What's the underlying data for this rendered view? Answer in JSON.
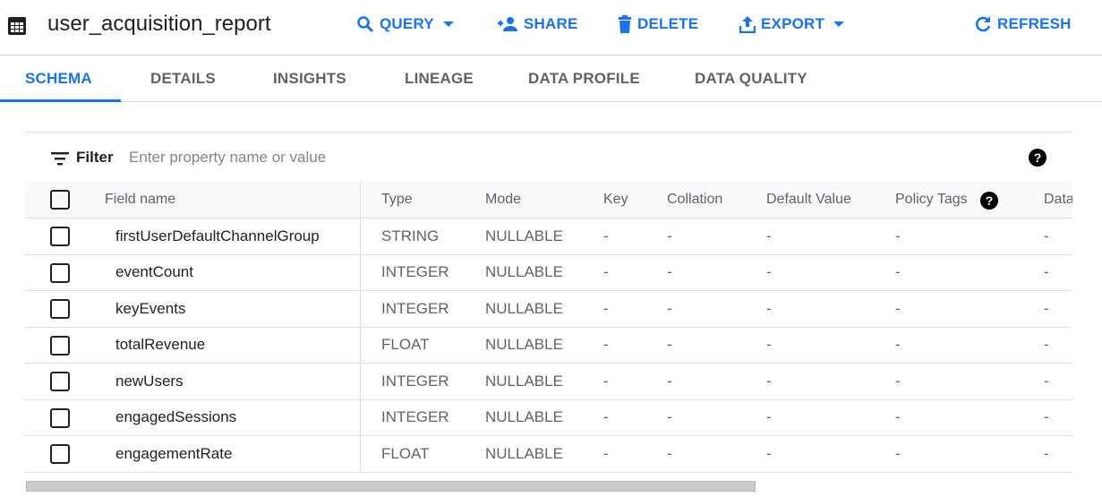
{
  "header": {
    "title": "user_acquisition_report",
    "actions": [
      {
        "label": "QUERY",
        "icon": "search-icon",
        "dropdown": true
      },
      {
        "label": "SHARE",
        "icon": "person-add-icon"
      },
      {
        "label": "DELETE",
        "icon": "trash-icon"
      },
      {
        "label": "EXPORT",
        "icon": "upload-icon",
        "dropdown": true
      },
      {
        "label": "REFRESH",
        "icon": "refresh-icon"
      }
    ]
  },
  "tabs": [
    {
      "label": "SCHEMA",
      "active": true
    },
    {
      "label": "DETAILS"
    },
    {
      "label": "INSIGHTS"
    },
    {
      "label": "LINEAGE"
    },
    {
      "label": "DATA PROFILE"
    },
    {
      "label": "DATA QUALITY"
    }
  ],
  "filter": {
    "label": "Filter",
    "placeholder": "Enter property name or value",
    "help": "?"
  },
  "table": {
    "columns": [
      "Field name",
      "Type",
      "Mode",
      "Key",
      "Collation",
      "Default Value",
      "Policy Tags",
      "Data"
    ],
    "policy_help": "?",
    "rows": [
      {
        "name": "firstUserDefaultChannelGroup",
        "type": "STRING",
        "mode": "NULLABLE",
        "key": "-",
        "collation": "-",
        "default": "-",
        "policy": "-",
        "data": "-"
      },
      {
        "name": "eventCount",
        "type": "INTEGER",
        "mode": "NULLABLE",
        "key": "-",
        "collation": "-",
        "default": "-",
        "policy": "-",
        "data": "-"
      },
      {
        "name": "keyEvents",
        "type": "INTEGER",
        "mode": "NULLABLE",
        "key": "-",
        "collation": "-",
        "default": "-",
        "policy": "-",
        "data": "-"
      },
      {
        "name": "totalRevenue",
        "type": "FLOAT",
        "mode": "NULLABLE",
        "key": "-",
        "collation": "-",
        "default": "-",
        "policy": "-",
        "data": "-"
      },
      {
        "name": "newUsers",
        "type": "INTEGER",
        "mode": "NULLABLE",
        "key": "-",
        "collation": "-",
        "default": "-",
        "policy": "-",
        "data": "-"
      },
      {
        "name": "engagedSessions",
        "type": "INTEGER",
        "mode": "NULLABLE",
        "key": "-",
        "collation": "-",
        "default": "-",
        "policy": "-",
        "data": "-"
      },
      {
        "name": "engagementRate",
        "type": "FLOAT",
        "mode": "NULLABLE",
        "key": "-",
        "collation": "-",
        "default": "-",
        "policy": "-",
        "data": "-"
      }
    ]
  },
  "colors": {
    "accent": "#1a73e8"
  }
}
